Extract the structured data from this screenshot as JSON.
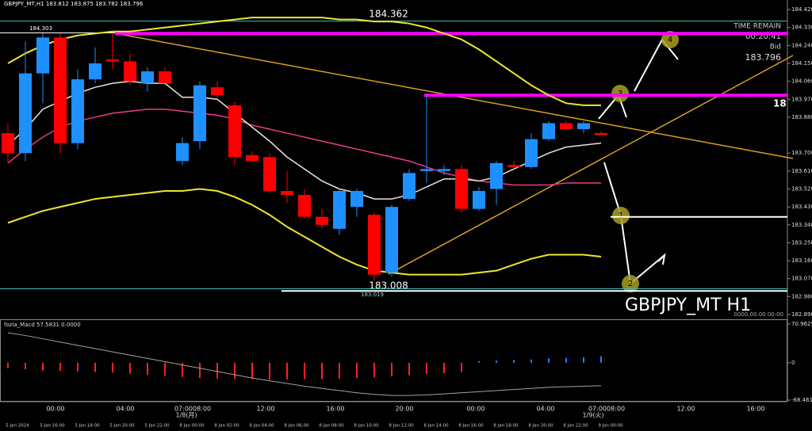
{
  "header": {
    "symbol_info": "GBPJPY_MT,H1  183.812 183.875 183.782 183.796"
  },
  "info_panel": {
    "time_remain": "TIME REMAIN",
    "countdown": "00:20:41",
    "bid_label": "Bid",
    "bid": "183.796",
    "cut_label": "18",
    "symbol": "GBPJPY_MT H1",
    "date_stamp": "0000.00.00 00:00"
  },
  "annotations": {
    "high_label": "184.362",
    "low_label": "183.008",
    "prev_high": "184.303",
    "prev_low": "183.019",
    "waves": [
      "1",
      "2",
      "3",
      "4"
    ]
  },
  "time_labels_major": [
    "00:00",
    "04:00",
    "07:0008:00",
    "12:00",
    "16:00",
    "20:00",
    "00:00",
    "04:00",
    "07:0008:00",
    "12:00",
    "16:00"
  ],
  "date_labels": [
    "1/8(月)",
    "1/9(火)"
  ],
  "time_labels_minor": [
    "5 Jan 2024",
    "5 Jan 16:00",
    "5 Jan 18:00",
    "5 Jan 20:00",
    "5 Jan 22:00",
    "8 Jan 00:00",
    "8 Jan 02:00",
    "8 Jan 04:00",
    "8 Jan 06:00",
    "8 Jan 08:00",
    "8 Jan 10:00",
    "8 Jan 12:00",
    "8 Jan 14:00",
    "8 Jan 16:00",
    "8 Jan 18:00",
    "8 Jan 20:00",
    "8 Jan 22:00",
    "9 Jan 00:00"
  ],
  "chart_data": [
    {
      "type": "candlestick",
      "up_color": "#1e90ff",
      "down_color": "#ff0000",
      "open": [
        183.8,
        183.7,
        184.1,
        184.28,
        183.75,
        184.07,
        184.17,
        184.16,
        184.05,
        184.11,
        183.66,
        183.76,
        184.03,
        183.94,
        183.69,
        183.68,
        183.51,
        183.49,
        183.38,
        183.32,
        183.43,
        183.39,
        183.1,
        183.47,
        183.61,
        183.61,
        183.62,
        183.42,
        183.52,
        183.64,
        183.63,
        183.77,
        183.85,
        183.82,
        183.8
      ],
      "high": [
        183.85,
        184.26,
        184.3,
        184.3,
        184.12,
        184.23,
        184.3,
        184.2,
        184.13,
        184.13,
        183.78,
        184.06,
        184.06,
        183.96,
        183.71,
        183.7,
        183.61,
        183.52,
        183.42,
        183.52,
        183.52,
        183.4,
        183.44,
        183.62,
        183.99,
        183.64,
        183.64,
        183.53,
        183.66,
        183.66,
        183.8,
        183.86,
        183.86,
        183.86,
        183.81
      ],
      "low": [
        183.65,
        183.66,
        183.95,
        183.7,
        183.72,
        184.05,
        184.12,
        184.04,
        184.01,
        184.05,
        183.64,
        183.72,
        183.98,
        183.64,
        183.66,
        183.5,
        183.45,
        183.37,
        183.32,
        183.29,
        183.38,
        183.06,
        183.08,
        183.46,
        183.55,
        183.59,
        183.4,
        183.41,
        183.44,
        183.62,
        183.62,
        183.76,
        183.82,
        183.8,
        183.79
      ],
      "close": [
        183.7,
        184.1,
        184.28,
        183.75,
        184.07,
        184.15,
        184.16,
        184.06,
        184.11,
        184.05,
        183.75,
        184.04,
        183.99,
        183.68,
        183.66,
        183.51,
        183.49,
        183.38,
        183.34,
        183.51,
        183.51,
        183.09,
        183.43,
        183.6,
        183.62,
        183.62,
        183.42,
        183.51,
        183.65,
        183.63,
        183.77,
        183.85,
        183.82,
        183.85,
        183.79
      ],
      "overlays": [
        {
          "color": "#f0e630",
          "values": [
            184.15,
            184.2,
            184.24,
            184.27,
            184.29,
            184.3,
            184.31,
            184.31,
            184.32,
            184.33,
            184.34,
            184.35,
            184.36,
            184.37,
            184.38,
            184.38,
            184.38,
            184.38,
            184.38,
            184.37,
            184.37,
            184.36,
            184.36,
            184.35,
            184.33,
            184.3,
            184.27,
            184.22,
            184.16,
            184.1,
            184.04,
            183.99,
            183.95,
            183.94,
            183.94
          ]
        },
        {
          "color": "#f0e630",
          "values": [
            183.35,
            183.38,
            183.41,
            183.43,
            183.45,
            183.47,
            183.48,
            183.49,
            183.5,
            183.51,
            183.51,
            183.52,
            183.51,
            183.48,
            183.44,
            183.39,
            183.33,
            183.28,
            183.23,
            183.18,
            183.14,
            183.11,
            183.1,
            183.09,
            183.09,
            183.09,
            183.09,
            183.1,
            183.11,
            183.14,
            183.17,
            183.19,
            183.19,
            183.19,
            183.18
          ]
        },
        {
          "color": "#e83c8c",
          "values": [
            183.65,
            183.72,
            183.78,
            183.83,
            183.86,
            183.88,
            183.9,
            183.91,
            183.92,
            183.92,
            183.91,
            183.9,
            183.89,
            183.87,
            183.84,
            183.82,
            183.8,
            183.78,
            183.76,
            183.74,
            183.72,
            183.7,
            183.68,
            183.66,
            183.63,
            183.6,
            183.58,
            183.56,
            183.55,
            183.54,
            183.54,
            183.54,
            183.55,
            183.55,
            183.55
          ]
        },
        {
          "color": "#f0e0d8",
          "values": [
            183.74,
            183.82,
            183.92,
            183.96,
            184.0,
            184.03,
            184.05,
            184.06,
            184.05,
            184.05,
            183.98,
            183.98,
            183.97,
            183.9,
            183.83,
            183.76,
            183.68,
            183.62,
            183.56,
            183.52,
            183.5,
            183.47,
            183.47,
            183.49,
            183.53,
            183.57,
            183.57,
            183.56,
            183.58,
            183.62,
            183.66,
            183.7,
            183.73,
            183.74,
            183.75
          ]
        }
      ],
      "levels": [
        {
          "value": 184.362,
          "color": "#40c0c0"
        },
        {
          "value": 184.303,
          "color": "#ffffff"
        },
        {
          "value": 184.3,
          "color": "#ff00ff"
        },
        {
          "value": 183.99,
          "color": "#ff00ff"
        },
        {
          "value": 183.38,
          "color": "#ffffff"
        },
        {
          "value": 183.019,
          "color": "#40c0c0"
        },
        {
          "value": 183.008,
          "color": "#ffffff"
        }
      ],
      "ylim": [
        182.878,
        184.468
      ],
      "yticks": [
        {
          "value": 184.42,
          "label": "184.420"
        },
        {
          "value": 184.33,
          "label": "184.330"
        },
        {
          "value": 184.24,
          "label": "184.240"
        },
        {
          "value": 184.15,
          "label": "184.150"
        },
        {
          "value": 184.06,
          "label": "184.060"
        },
        {
          "value": 183.97,
          "label": "183.970"
        },
        {
          "value": 183.88,
          "label": "183.880"
        },
        {
          "value": 183.7,
          "label": "183.700"
        },
        {
          "value": 183.61,
          "label": "183.610"
        },
        {
          "value": 183.52,
          "label": "183.520"
        },
        {
          "value": 183.43,
          "label": "183.430"
        },
        {
          "value": 183.34,
          "label": "183.340"
        },
        {
          "value": 183.25,
          "label": "183.250"
        },
        {
          "value": 183.16,
          "label": "183.160"
        },
        {
          "value": 183.07,
          "label": "183.070"
        },
        {
          "value": 182.98,
          "label": "182.980"
        },
        {
          "value": 182.89,
          "label": "182.890"
        }
      ]
    },
    {
      "type": "macd",
      "title": "fozia_Macd 57.5831 0.0000",
      "down_color": "#ff2020",
      "up_color": "#2080ff",
      "signal_color": "#a0a0a0",
      "values": [
        -10,
        -12,
        -14,
        -15,
        -16,
        -17,
        -18,
        -20,
        -22,
        -24,
        -26,
        -28,
        -29,
        -30,
        -30,
        -31,
        -31,
        -30,
        -30,
        -29,
        -28,
        -27,
        -25,
        -23,
        -21,
        -19,
        -17,
        3,
        4,
        5,
        6,
        8,
        9,
        10,
        12
      ],
      "signal": [
        55,
        50,
        44,
        38,
        32,
        26,
        20,
        14,
        8,
        2,
        -4,
        -10,
        -16,
        -22,
        -28,
        -33,
        -38,
        -43,
        -47,
        -51,
        -55,
        -58,
        -60,
        -60,
        -59,
        -57,
        -55,
        -53,
        -51,
        -49,
        -47,
        -45,
        -44,
        -43,
        -42
      ],
      "ylim": [
        -68.461,
        70.9625
      ],
      "yticks": [
        70.9625,
        0,
        -68.461
      ]
    }
  ]
}
